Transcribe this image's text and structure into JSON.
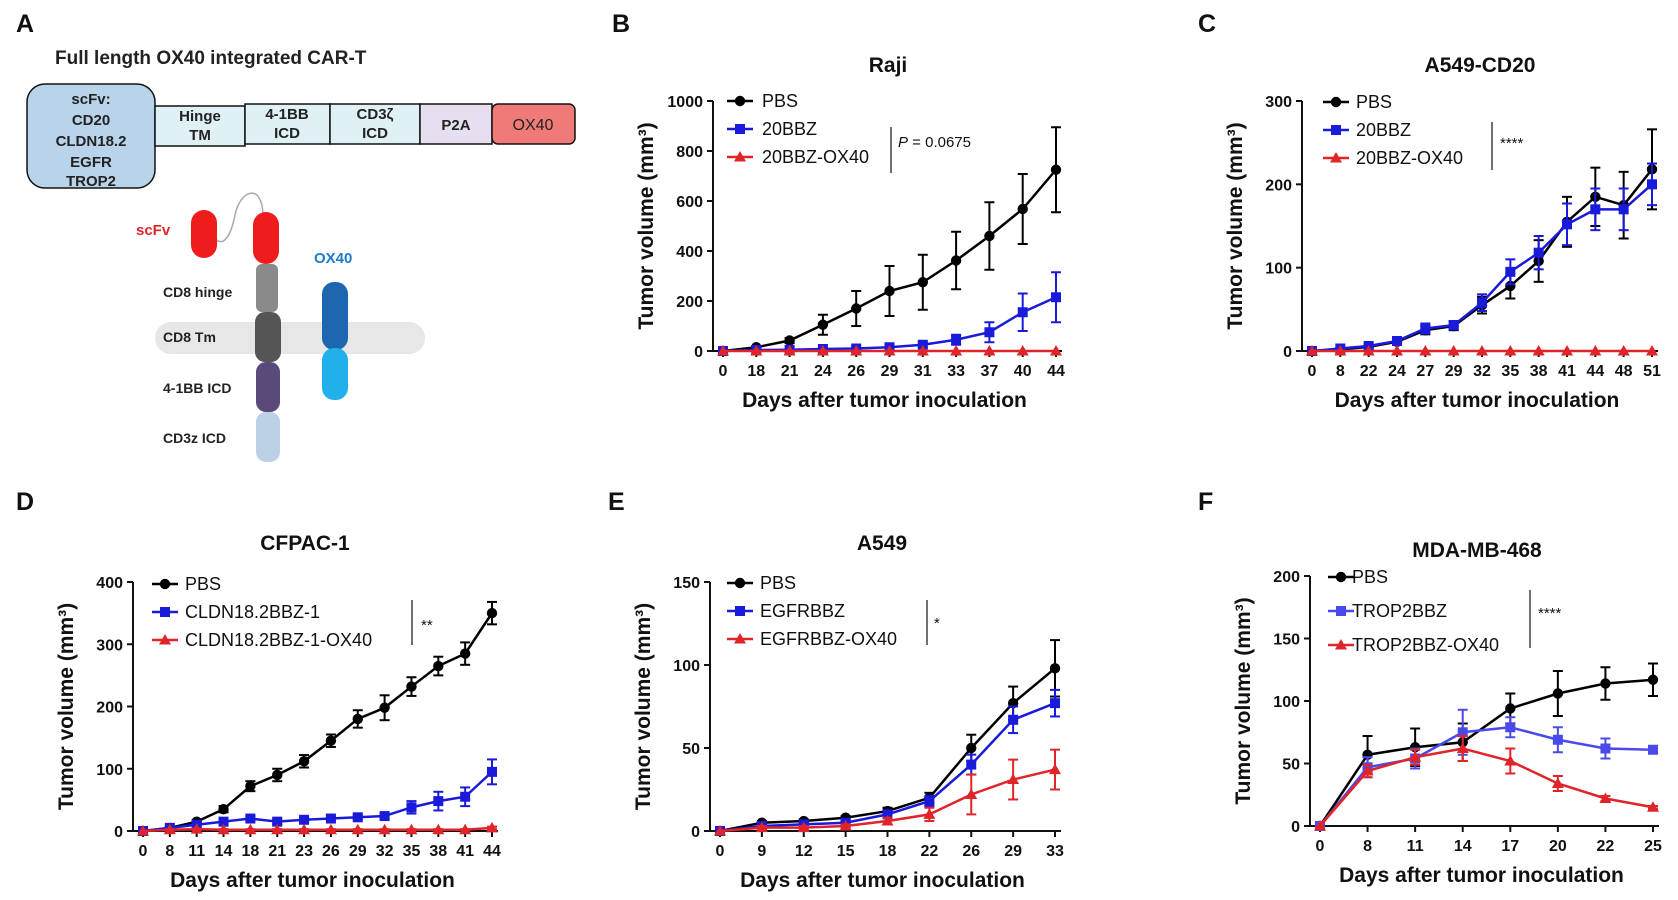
{
  "panel_a": {
    "label": "A",
    "title": "Full length OX40 integrated CAR-T",
    "scfv_box": {
      "lines": [
        "scFv:",
        "CD20",
        "CLDN18.2",
        "EGFR",
        "TROP2"
      ]
    },
    "segments": [
      {
        "lines": [
          "Hinge",
          "TM"
        ],
        "color": "#dff1f5"
      },
      {
        "lines": [
          "4-1BB",
          "ICD"
        ],
        "color": "#dff1f5"
      },
      {
        "lines": [
          "CD3ζ",
          "ICD"
        ],
        "color": "#dff1f5"
      },
      {
        "lines": [
          "P2A"
        ],
        "color": "#e6dff0"
      },
      {
        "lines": [
          "OX40"
        ],
        "color": "#f07a78"
      }
    ],
    "diagram_labels": {
      "scfv": "scFv",
      "ox40": "OX40",
      "hinge": "CD8 hinge",
      "tm": "CD8 Tm",
      "bb": "4-1BB ICD",
      "cd3z": "CD3z ICD"
    }
  },
  "colors": {
    "PBS": "#000000",
    "BBZ": "#1a1adb",
    "BBZ_light": "#4a4ae8",
    "OX40": "#e0252a"
  },
  "chart_data": [
    {
      "panel": "B",
      "type": "line",
      "title": "Raji",
      "xlabel": "Days after tumor inoculation",
      "ylabel": "Tumor volume (mm³)",
      "categories": [
        "0",
        "18",
        "21",
        "24",
        "26",
        "29",
        "31",
        "33",
        "37",
        "40",
        "44"
      ],
      "ylim": [
        0,
        1000
      ],
      "yticks": [
        0,
        200,
        400,
        600,
        800,
        1000
      ],
      "stat": "P = 0.0675",
      "series": [
        {
          "name": "PBS",
          "marker": "circle",
          "color": "#000000",
          "values": [
            0,
            15,
            42,
            105,
            170,
            240,
            275,
            362,
            460,
            568,
            725
          ],
          "errors": [
            0,
            5,
            10,
            40,
            70,
            100,
            110,
            115,
            135,
            140,
            170
          ]
        },
        {
          "name": "20BBZ",
          "marker": "square",
          "color": "#1a1adb",
          "values": [
            0,
            4,
            5,
            8,
            10,
            15,
            25,
            45,
            75,
            155,
            215
          ],
          "errors": [
            0,
            2,
            2,
            3,
            5,
            8,
            10,
            20,
            40,
            75,
            100
          ]
        },
        {
          "name": "20BBZ-OX40",
          "marker": "triangle",
          "color": "#e0252a",
          "values": [
            0,
            0,
            0,
            0,
            0,
            0,
            0,
            0,
            0,
            0,
            0
          ],
          "errors": [
            0,
            0,
            0,
            0,
            0,
            0,
            0,
            0,
            0,
            0,
            0
          ]
        }
      ]
    },
    {
      "panel": "C",
      "type": "line",
      "title": "A549-CD20",
      "xlabel": "Days after tumor inoculation",
      "ylabel": "Tumor volume (mm³)",
      "categories": [
        "0",
        "8",
        "22",
        "24",
        "27",
        "29",
        "32",
        "35",
        "38",
        "41",
        "44",
        "48",
        "51"
      ],
      "ylim": [
        0,
        300
      ],
      "yticks": [
        0,
        100,
        200,
        300
      ],
      "stat": "****",
      "series": [
        {
          "name": "PBS",
          "marker": "circle",
          "color": "#000000",
          "values": [
            0,
            2,
            5,
            11,
            25,
            30,
            55,
            78,
            108,
            155,
            185,
            175,
            218
          ],
          "errors": [
            0,
            1,
            2,
            3,
            5,
            5,
            10,
            15,
            25,
            30,
            35,
            40,
            48
          ]
        },
        {
          "name": "20BBZ",
          "marker": "square",
          "color": "#1a1adb",
          "values": [
            0,
            3,
            6,
            12,
            27,
            31,
            58,
            95,
            118,
            152,
            170,
            170,
            200
          ],
          "errors": [
            0,
            1,
            2,
            3,
            6,
            5,
            10,
            15,
            20,
            25,
            25,
            25,
            25
          ]
        },
        {
          "name": "20BBZ-OX40",
          "marker": "triangle",
          "color": "#e0252a",
          "values": [
            0,
            0,
            0,
            0,
            0,
            0,
            0,
            0,
            0,
            0,
            0,
            0,
            0
          ],
          "errors": [
            0,
            0,
            0,
            0,
            0,
            0,
            0,
            0,
            0,
            0,
            0,
            0,
            0
          ]
        }
      ]
    },
    {
      "panel": "D",
      "type": "line",
      "title": "CFPAC-1",
      "xlabel": "Days after tumor inoculation",
      "ylabel": "Tumor volume (mm³)",
      "categories": [
        "0",
        "8",
        "11",
        "14",
        "18",
        "21",
        "23",
        "26",
        "29",
        "32",
        "35",
        "38",
        "41",
        "44"
      ],
      "ylim": [
        0,
        400
      ],
      "yticks": [
        0,
        100,
        200,
        300,
        400
      ],
      "stat": "**",
      "series": [
        {
          "name": "PBS",
          "marker": "circle",
          "color": "#000000",
          "values": [
            0,
            5,
            15,
            35,
            72,
            90,
            112,
            145,
            180,
            198,
            232,
            265,
            285,
            350
          ],
          "errors": [
            0,
            2,
            3,
            5,
            8,
            10,
            10,
            10,
            14,
            20,
            15,
            15,
            18,
            18
          ]
        },
        {
          "name": "CLDN18.2BBZ-1",
          "marker": "square",
          "color": "#1a1adb",
          "values": [
            0,
            5,
            10,
            15,
            20,
            15,
            18,
            20,
            22,
            24,
            38,
            48,
            55,
            95
          ],
          "errors": [
            0,
            2,
            3,
            3,
            4,
            4,
            4,
            4,
            4,
            4,
            10,
            15,
            15,
            20
          ]
        },
        {
          "name": "CLDN18.2BBZ-1-OX40",
          "marker": "triangle",
          "color": "#e0252a",
          "values": [
            0,
            2,
            3,
            2,
            2,
            2,
            2,
            2,
            2,
            2,
            2,
            2,
            2,
            5
          ],
          "errors": [
            0,
            1,
            1,
            1,
            1,
            1,
            1,
            1,
            1,
            1,
            1,
            1,
            1,
            2
          ]
        }
      ]
    },
    {
      "panel": "E",
      "type": "line",
      "title": "A549",
      "xlabel": "Days after tumor inoculation",
      "ylabel": "Tumor volume (mm³)",
      "categories": [
        "0",
        "9",
        "12",
        "15",
        "18",
        "22",
        "26",
        "29",
        "33"
      ],
      "ylim": [
        0,
        150
      ],
      "yticks": [
        0,
        50,
        100,
        150
      ],
      "stat": "*",
      "series": [
        {
          "name": "PBS",
          "marker": "circle",
          "color": "#000000",
          "values": [
            0,
            5,
            6,
            8,
            12,
            20,
            50,
            77,
            98
          ],
          "errors": [
            0,
            1,
            1,
            1,
            2,
            3,
            8,
            10,
            17
          ]
        },
        {
          "name": "EGFRBBZ",
          "marker": "square",
          "color": "#1a1adb",
          "values": [
            0,
            3,
            4,
            5,
            10,
            18,
            40,
            67,
            77
          ],
          "errors": [
            0,
            1,
            1,
            1,
            2,
            3,
            6,
            8,
            8
          ]
        },
        {
          "name": "EGFRBBZ-OX40",
          "marker": "triangle",
          "color": "#e0252a",
          "values": [
            0,
            2,
            2,
            3,
            6,
            10,
            22,
            31,
            37
          ],
          "errors": [
            0,
            1,
            1,
            1,
            2,
            4,
            12,
            12,
            12
          ]
        }
      ]
    },
    {
      "panel": "F",
      "type": "line",
      "title": "MDA-MB-468",
      "xlabel": "Days after tumor inoculation",
      "ylabel": "Tumor volume (mm³)",
      "categories": [
        "0",
        "8",
        "11",
        "14",
        "17",
        "20",
        "22",
        "25"
      ],
      "ylim": [
        0,
        200
      ],
      "yticks": [
        0,
        50,
        100,
        150,
        200
      ],
      "stat": "****",
      "series": [
        {
          "name": "PBS",
          "marker": "circle",
          "color": "#000000",
          "values": [
            0,
            57,
            63,
            67,
            94,
            106,
            114,
            117
          ],
          "errors": [
            0,
            15,
            15,
            15,
            12,
            18,
            13,
            13
          ]
        },
        {
          "name": "TROP2BBZ",
          "marker": "square",
          "color": "#4a4ae8",
          "values": [
            0,
            47,
            54,
            75,
            79,
            69,
            62,
            61
          ],
          "errors": [
            0,
            8,
            8,
            18,
            8,
            10,
            8,
            3
          ]
        },
        {
          "name": "TROP2BBZ-OX40",
          "marker": "triangle",
          "color": "#e0252a",
          "values": [
            0,
            44,
            55,
            62,
            52,
            34,
            22,
            15
          ],
          "errors": [
            0,
            5,
            6,
            10,
            10,
            6,
            2,
            1
          ]
        }
      ]
    }
  ]
}
